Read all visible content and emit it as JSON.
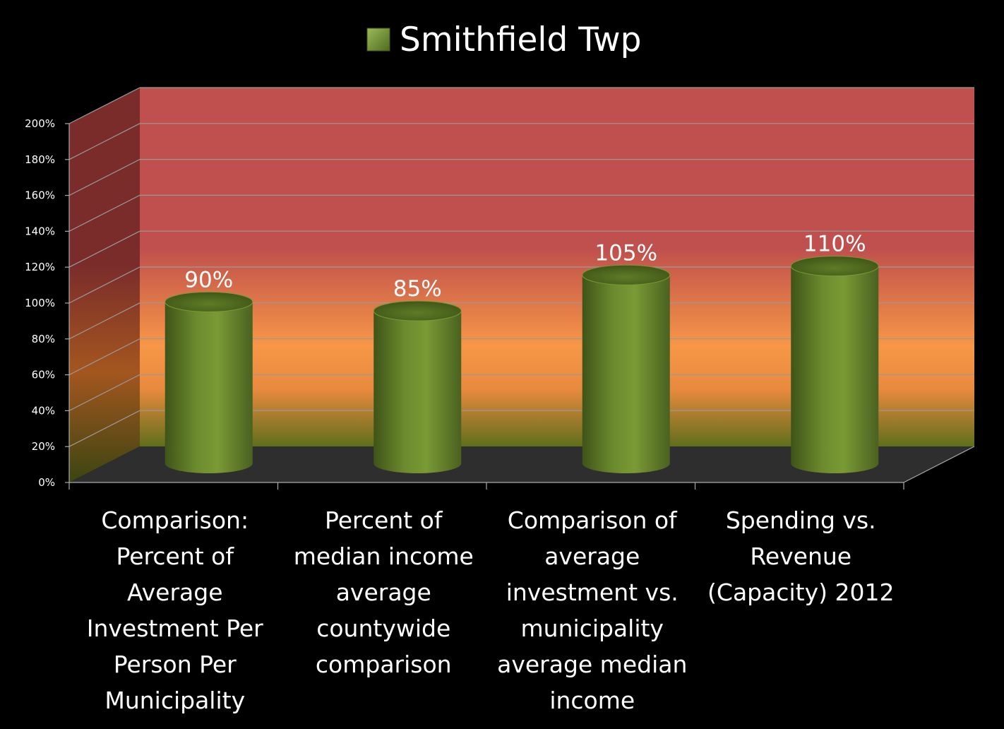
{
  "chart_data": {
    "type": "bar",
    "style": "3d-cylinder",
    "series": [
      {
        "name": "Smithfield Twp",
        "values": [
          90,
          85,
          105,
          110
        ]
      }
    ],
    "categories": [
      [
        "Comparison:",
        "Percent of",
        "Average",
        "Investment Per",
        "Person Per",
        "Municipality"
      ],
      [
        "Percent of",
        "median income",
        "average",
        "countywide",
        "comparison"
      ],
      [
        "Comparison of",
        "average",
        "investment vs.",
        "municipality",
        "average median",
        "income"
      ],
      [
        "Spending vs.",
        "Revenue",
        "(Capacity) 2012"
      ]
    ],
    "data_labels": [
      "90%",
      "85%",
      "105%",
      "110%"
    ],
    "y_ticks": [
      "0%",
      "20%",
      "40%",
      "60%",
      "80%",
      "100%",
      "120%",
      "140%",
      "160%",
      "180%",
      "200%"
    ],
    "ylim": [
      0,
      200
    ],
    "grid": true,
    "legend_position": "top",
    "colors": {
      "bar": "#6b8a2e",
      "bar_dark": "#3f5418",
      "wall_top": "#c0504d",
      "wall_mid": "#f79646",
      "wall_bottom": "#6b7a1f",
      "floor": "#2f2f2f",
      "grid": "#9a9a9a"
    }
  }
}
